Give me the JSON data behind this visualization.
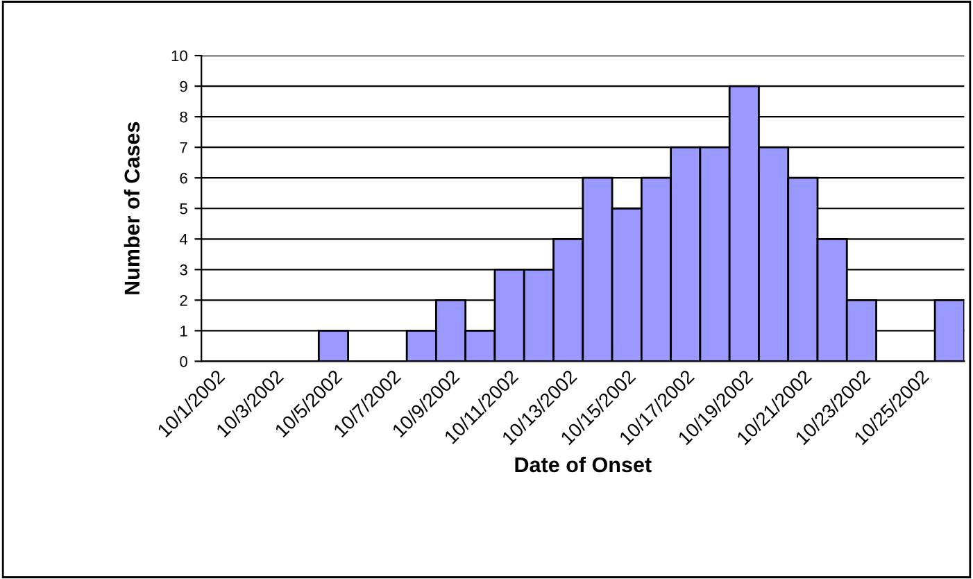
{
  "chart_data": {
    "type": "bar",
    "xlabel": "Date of Onset",
    "ylabel": "Number of Cases",
    "categories": [
      "10/1/2002",
      null,
      "10/3/2002",
      null,
      "10/5/2002",
      null,
      "10/7/2002",
      null,
      "10/9/2002",
      null,
      "10/11/2002",
      null,
      "10/13/2002",
      null,
      "10/15/2002",
      null,
      "10/17/2002",
      null,
      "10/19/2002",
      null,
      "10/21/2002",
      null,
      "10/23/2002",
      null,
      "10/25/2002",
      null
    ],
    "values": [
      0,
      0,
      0,
      0,
      1,
      0,
      0,
      1,
      2,
      1,
      3,
      3,
      4,
      6,
      5,
      6,
      7,
      7,
      9,
      7,
      6,
      4,
      2,
      0,
      0,
      2
    ],
    "color": "#9999ff",
    "ylim": [
      0,
      10
    ],
    "yticks": [
      0,
      1,
      2,
      3,
      4,
      5,
      6,
      7,
      8,
      9,
      10
    ],
    "grid": "y",
    "legend": false
  }
}
